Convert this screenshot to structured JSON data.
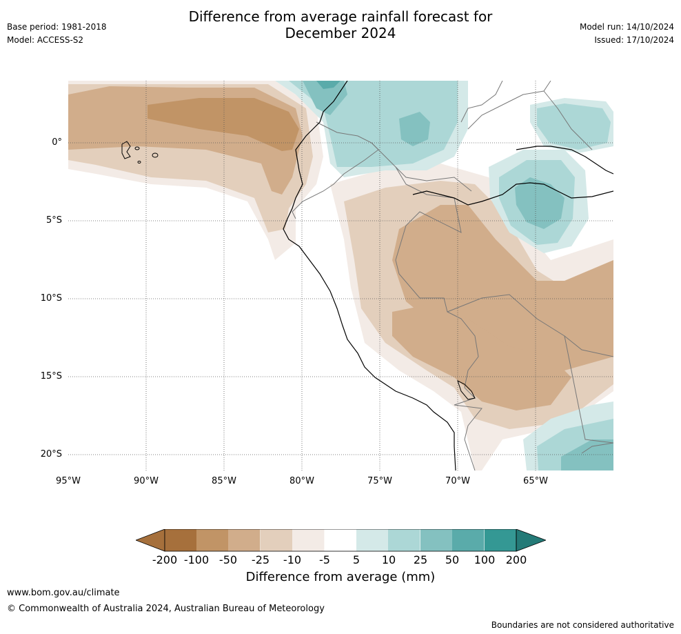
{
  "header": {
    "title_line1": "Difference from average rainfall forecast for",
    "title_line2": "December 2024",
    "base_period": "Base period: 1981-2018",
    "model": "Model: ACCESS-S2",
    "model_run": "Model run: 14/10/2024",
    "issued": "Issued: 17/10/2024"
  },
  "map": {
    "lat_labels": [
      "0°",
      "5°S",
      "10°S",
      "15°S",
      "20°S"
    ],
    "lon_labels": [
      "95°W",
      "90°W",
      "85°W",
      "80°W",
      "75°W",
      "70°W",
      "65°W"
    ],
    "colors": {
      "-200": "#a6703c",
      "-100": "#c19466",
      "-50": "#d1ad8b",
      "-25": "#e3cfbc",
      "-10": "#f3ebe6",
      "5": "#ffffff",
      "10": "#d4e9e8",
      "25": "#acd7d6",
      "50": "#84c1c0",
      "100": "#5aabaa",
      "200": "#349894",
      "max": "#247a77"
    }
  },
  "colorbar": {
    "ticks": [
      "-200",
      "-100",
      "-50",
      "-25",
      "-10",
      "-5",
      "5",
      "10",
      "25",
      "50",
      "100",
      "200"
    ],
    "label": "Difference from average (mm)"
  },
  "footer": {
    "website": "www.bom.gov.au/climate",
    "copyright": "© Commonwealth of Australia 2024, Australian Bureau of Meteorology",
    "disclaimer": "Boundaries are not considered authoritative"
  }
}
